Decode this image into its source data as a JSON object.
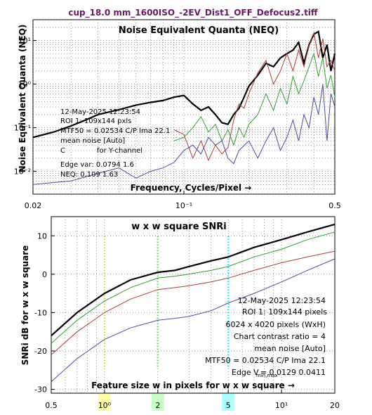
{
  "figure_title": "cup_18.0 mm_1600ISO_-2EV_Dist1_OFF_Defocus2.tiff",
  "colors": {
    "title": "#6a1a6a",
    "black": "#000000",
    "red": "#b03a3a",
    "green": "#2f9e2f",
    "blue": "#4a4aa0",
    "marker_yellow": "#ffff66",
    "marker_green": "#99ff99",
    "marker_cyan": "#66ffff"
  },
  "chart_data": [
    {
      "type": "line",
      "title": "Noise Equivalent Quanta (NEQ)",
      "xlabel": "Frequency, Cycles/Pixel →",
      "ylabel": "Noise Equivalent Quanta (NEQ)",
      "xscale": "log",
      "yscale": "log",
      "xlim": [
        0.02,
        0.5
      ],
      "ylim": [
        0.003,
        30
      ],
      "grid": true,
      "x_ticks": [
        "0.02",
        "10⁻¹",
        "0.5"
      ],
      "y_ticks": [
        "10⁻²",
        "10⁻¹",
        "10⁰",
        "10¹"
      ],
      "annotations": [
        "12-May-2025 12:23:54",
        "ROI 1:  109x144 pxls",
        "MTF50 = 0.02534 C/P  Ima 22.1",
        "mean noise  [Auto]",
        "C",
        "for Y-channel",
        "Edge var:  0.0794  1.6",
        "NEQ:      0.109  1.63"
      ],
      "series": [
        {
          "color": "#000000",
          "x": [
            0.02,
            0.025,
            0.03,
            0.035,
            0.04,
            0.05,
            0.06,
            0.07,
            0.08,
            0.09,
            0.1,
            0.11,
            0.12,
            0.13,
            0.14,
            0.15,
            0.16,
            0.17,
            0.18,
            0.19,
            0.2,
            0.22,
            0.24,
            0.26,
            0.28,
            0.3,
            0.32,
            0.34,
            0.36,
            0.38,
            0.4,
            0.42,
            0.44,
            0.46,
            0.48,
            0.5
          ],
          "y": [
            0.06,
            0.08,
            0.11,
            0.15,
            0.2,
            0.26,
            0.33,
            0.38,
            0.42,
            0.5,
            0.55,
            0.35,
            0.25,
            0.3,
            0.2,
            0.13,
            0.12,
            0.2,
            0.28,
            0.5,
            0.9,
            1.6,
            3.0,
            2.5,
            4.0,
            5.0,
            6.0,
            9.0,
            3.0,
            8.0,
            14.0,
            16.0,
            4.0,
            8.0,
            2.0,
            5.0
          ]
        },
        {
          "color": "#b03a3a",
          "x": [
            0.09,
            0.1,
            0.11,
            0.12,
            0.13,
            0.14,
            0.15,
            0.16,
            0.17,
            0.18,
            0.19,
            0.2,
            0.22,
            0.24,
            0.26,
            0.28,
            0.3,
            0.32,
            0.34,
            0.36,
            0.38,
            0.4,
            0.42,
            0.44,
            0.46,
            0.48,
            0.5
          ],
          "y": [
            0.09,
            0.07,
            0.02,
            0.05,
            0.018,
            0.04,
            0.025,
            0.035,
            0.15,
            0.35,
            0.28,
            0.6,
            1.8,
            3.5,
            1.0,
            2.0,
            5.0,
            2.0,
            6.0,
            2.5,
            8.0,
            15.0,
            4.0,
            11.0,
            2.5,
            3.5,
            2.0
          ]
        },
        {
          "color": "#2f9e2f",
          "x": [
            0.09,
            0.1,
            0.11,
            0.12,
            0.13,
            0.14,
            0.15,
            0.16,
            0.17,
            0.18,
            0.19,
            0.2,
            0.22,
            0.24,
            0.26,
            0.28,
            0.3,
            0.32,
            0.34,
            0.36,
            0.38,
            0.4,
            0.42,
            0.44,
            0.46,
            0.48,
            0.5
          ],
          "y": [
            0.05,
            0.06,
            0.1,
            0.18,
            0.08,
            0.12,
            0.05,
            0.09,
            0.04,
            0.1,
            0.06,
            0.12,
            0.2,
            0.6,
            0.25,
            0.8,
            0.35,
            1.5,
            0.6,
            1.2,
            2.5,
            5.0,
            1.5,
            4.0,
            0.8,
            1.6,
            0.5
          ]
        },
        {
          "color": "#4a4aa0",
          "x": [
            0.02,
            0.03,
            0.04,
            0.05,
            0.06,
            0.07,
            0.08,
            0.09,
            0.1,
            0.11,
            0.12,
            0.13,
            0.14,
            0.15,
            0.16,
            0.17,
            0.18,
            0.2,
            0.22,
            0.24,
            0.26,
            0.28,
            0.3,
            0.32,
            0.34,
            0.36,
            0.38,
            0.4,
            0.42,
            0.44,
            0.46,
            0.48,
            0.5
          ],
          "y": [
            0.005,
            0.006,
            0.009,
            0.012,
            0.007,
            0.01,
            0.012,
            0.016,
            0.03,
            0.04,
            0.025,
            0.06,
            0.04,
            0.05,
            0.02,
            0.015,
            0.03,
            0.05,
            0.02,
            0.05,
            0.1,
            0.03,
            0.06,
            0.15,
            0.05,
            0.2,
            0.1,
            0.5,
            0.2,
            1.0,
            0.05,
            0.6,
            0.3
          ]
        }
      ]
    },
    {
      "type": "line",
      "title": "w x w square SNRi",
      "xlabel": "Feature size w in pixels for w x w square →",
      "ylabel": "SNRi dB for w x w square",
      "xscale": "log",
      "xlim": [
        0.5,
        20
      ],
      "ylim": [
        -31,
        15
      ],
      "grid": true,
      "x_ticks": [
        "0.5",
        "10⁰",
        "2",
        "5",
        "10¹",
        "20"
      ],
      "y_ticks": [
        "-30",
        "-20",
        "-10",
        "0",
        "10"
      ],
      "vertical_markers": [
        {
          "x": 1,
          "color": "#ffff66"
        },
        {
          "x": 2,
          "color": "#99ff99"
        },
        {
          "x": 5,
          "color": "#66ffff"
        }
      ],
      "annotations": [
        "12-May-2025 12:23:54",
        "ROI 1:  109x144 pixels",
        "6024 x 4020 pixels (WxH)",
        "Chart contrast ratio = 4",
        "mean noise  [Auto]",
        "MTF50 = 0.02534 C/P  Ima 22.1",
        "Edge V",
        "= 0.0129 0.0411"
      ],
      "series": [
        {
          "color": "#000000",
          "x": [
            0.5,
            0.7,
            1.0,
            1.4,
            2.0,
            2.5,
            3.0,
            4.0,
            5.0,
            7.0,
            10.0,
            14.0,
            20.0
          ],
          "y": [
            -16,
            -10,
            -5,
            -1.5,
            0.5,
            1,
            2,
            3.5,
            4.5,
            7,
            9,
            11,
            13
          ]
        },
        {
          "color": "#2f9e2f",
          "x": [
            0.5,
            0.7,
            1.0,
            1.4,
            2.0,
            2.5,
            3.0,
            4.0,
            5.0,
            7.0,
            10.0,
            14.0,
            20.0
          ],
          "y": [
            -18,
            -12,
            -7,
            -3.5,
            -1,
            -0.5,
            0,
            1,
            2,
            4.5,
            6.5,
            9,
            11
          ]
        },
        {
          "color": "#b03a3a",
          "x": [
            0.5,
            0.7,
            1.0,
            1.4,
            2.0,
            2.5,
            3.0,
            4.0,
            5.0,
            7.0,
            10.0,
            14.0,
            20.0
          ],
          "y": [
            -21,
            -15,
            -10,
            -6.5,
            -4,
            -3.5,
            -3,
            -2,
            -1,
            1,
            3,
            4.5,
            6
          ]
        },
        {
          "color": "#4a4aa0",
          "x": [
            0.5,
            0.7,
            1.0,
            1.4,
            2.0,
            2.5,
            3.0,
            4.0,
            5.0,
            7.0,
            10.0,
            14.0,
            20.0
          ],
          "y": [
            -28,
            -22,
            -17,
            -14,
            -12,
            -11.5,
            -11,
            -9.5,
            -7.5,
            -5,
            -2,
            1,
            4
          ]
        }
      ]
    }
  ]
}
